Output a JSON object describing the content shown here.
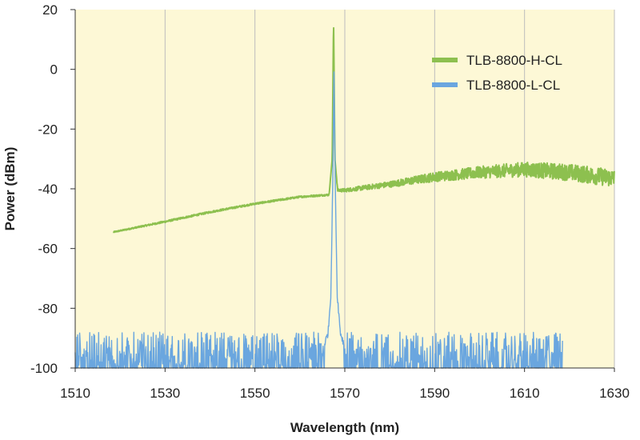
{
  "chart_data": {
    "type": "line",
    "xlabel": "Wavelength (nm)",
    "ylabel": "Power (dBm)",
    "xlim": [
      1510,
      1630
    ],
    "ylim": [
      -100,
      20
    ],
    "xticks": [
      "1510",
      "1530",
      "1550",
      "1570",
      "1590",
      "1610",
      "1630"
    ],
    "yticks": [
      "20",
      "0",
      "-20",
      "-40",
      "-60",
      "-80",
      "-100"
    ],
    "grid": "vertical",
    "plot_background": "#FDF8D6",
    "legend_position": "top-right",
    "series": [
      {
        "name": "TLB-8800-H-CL",
        "color": "#8DC04F",
        "x": [
          1518.5,
          1530,
          1540,
          1550,
          1560,
          1566.5,
          1567.2,
          1567.5,
          1567.8,
          1568.4,
          1570,
          1580,
          1590,
          1600,
          1610,
          1620,
          1630
        ],
        "y": [
          -54.5,
          -51,
          -47.8,
          -45,
          -42.7,
          -42,
          -30,
          17,
          -30,
          -40.5,
          -40.5,
          -38.5,
          -36,
          -34.5,
          -33.5,
          -34.5,
          -36.5
        ],
        "noise_amplitude": [
          0.2,
          0.3,
          0.3,
          0.3,
          0.3,
          0.3,
          0,
          0,
          0,
          0.5,
          0.6,
          1.0,
          1.6,
          2.0,
          2.5,
          2.8,
          3.0
        ]
      },
      {
        "name": "TLB-8800-L-CL",
        "color": "#6AA6DF",
        "x": [
          1510,
          1565.5,
          1566.3,
          1566.9,
          1567.3,
          1567.6,
          1567.9,
          1568.3,
          1569.0,
          1569.8,
          1618.5
        ],
        "y": [
          -92,
          -92,
          -88,
          -75,
          -40,
          -2,
          -40,
          -75,
          -88,
          -92,
          -92
        ],
        "noise_band": [
          -100,
          -88
        ]
      }
    ]
  }
}
